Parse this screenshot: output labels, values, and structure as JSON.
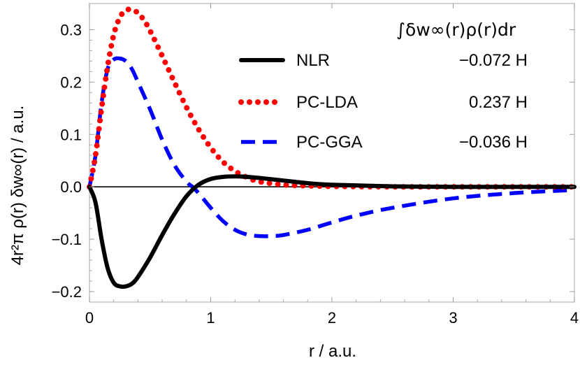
{
  "chart_data": {
    "type": "line",
    "xlabel": "r / a.u.",
    "ylabel": "4r²π ρ(r) δw∞(r) / a.u.",
    "xlim": [
      0,
      4
    ],
    "ylim": [
      -0.22,
      0.35
    ],
    "x_ticks": [
      "0",
      "1",
      "2",
      "3",
      "4"
    ],
    "y_ticks": [
      "−0.2",
      "−0.1",
      "0.0",
      "0.1",
      "0.2",
      "0.3"
    ],
    "grid": false,
    "legend_title": "∫δw∞(r)ρ(r)dr",
    "legend_position": "top-right",
    "series": [
      {
        "name": "NLR",
        "legend_value": "−0.072 H",
        "color": "#000000",
        "style": "solid",
        "x": [
          0,
          0.05,
          0.1,
          0.15,
          0.2,
          0.25,
          0.3,
          0.35,
          0.4,
          0.5,
          0.6,
          0.7,
          0.8,
          0.9,
          1.0,
          1.1,
          1.2,
          1.3,
          1.4,
          1.6,
          1.8,
          2.0,
          2.5,
          3.0,
          3.5,
          4.0
        ],
        "y": [
          0,
          -0.03,
          -0.1,
          -0.155,
          -0.183,
          -0.19,
          -0.19,
          -0.185,
          -0.172,
          -0.135,
          -0.092,
          -0.052,
          -0.018,
          0.004,
          0.015,
          0.019,
          0.02,
          0.019,
          0.017,
          0.012,
          0.007,
          0.004,
          0.001,
          0,
          0,
          0
        ]
      },
      {
        "name": "PC-LDA",
        "legend_value": "0.237 H",
        "color": "#ff0000",
        "style": "dotted",
        "x": [
          0,
          0.05,
          0.1,
          0.15,
          0.2,
          0.25,
          0.3,
          0.35,
          0.4,
          0.45,
          0.5,
          0.6,
          0.7,
          0.8,
          0.9,
          1.0,
          1.1,
          1.2,
          1.3,
          1.4,
          1.6,
          1.8,
          2.0,
          2.5,
          3.0,
          3.5,
          4.0
        ],
        "y": [
          0,
          0.06,
          0.15,
          0.23,
          0.29,
          0.323,
          0.337,
          0.338,
          0.332,
          0.318,
          0.298,
          0.25,
          0.2,
          0.152,
          0.11,
          0.075,
          0.048,
          0.03,
          0.018,
          0.01,
          0.004,
          0.002,
          0.001,
          0,
          0,
          0,
          0
        ]
      },
      {
        "name": "PC-GGA",
        "legend_value": "−0.036 H",
        "color": "#0000ff",
        "style": "dashed",
        "x": [
          0,
          0.05,
          0.1,
          0.15,
          0.2,
          0.25,
          0.3,
          0.35,
          0.4,
          0.5,
          0.6,
          0.7,
          0.8,
          0.85,
          0.9,
          1.0,
          1.1,
          1.2,
          1.3,
          1.4,
          1.5,
          1.6,
          1.8,
          2.0,
          2.2,
          2.5,
          3.0,
          3.5,
          4.0
        ],
        "y": [
          0,
          0.06,
          0.16,
          0.225,
          0.243,
          0.245,
          0.24,
          0.225,
          0.2,
          0.148,
          0.09,
          0.042,
          0.01,
          0.0,
          -0.012,
          -0.04,
          -0.065,
          -0.082,
          -0.091,
          -0.094,
          -0.094,
          -0.092,
          -0.082,
          -0.068,
          -0.055,
          -0.04,
          -0.022,
          -0.012,
          -0.006
        ]
      }
    ]
  }
}
